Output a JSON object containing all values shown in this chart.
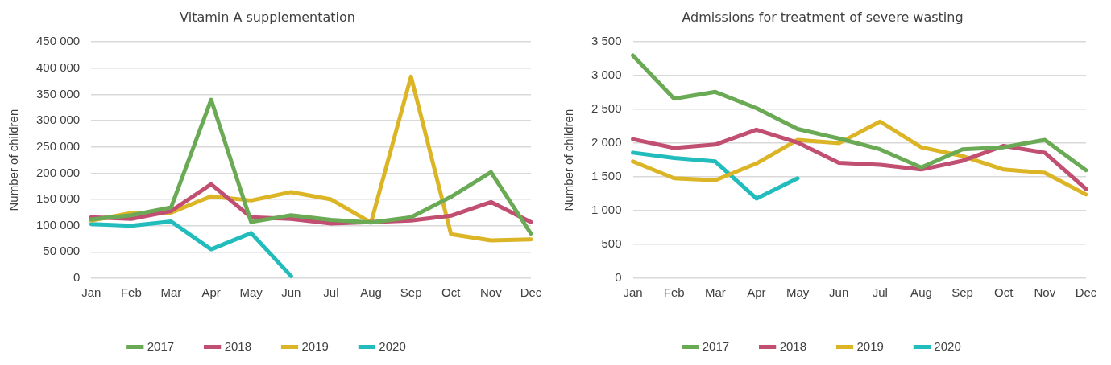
{
  "chart_data": [
    {
      "type": "line",
      "title": "Vitamin A supplementation",
      "ylabel": "Number of children",
      "categories": [
        "Jan",
        "Feb",
        "Mar",
        "Apr",
        "May",
        "Jun",
        "Jul",
        "Aug",
        "Sep",
        "Oct",
        "Nov",
        "Dec"
      ],
      "series": [
        {
          "name": "2017",
          "color": "#6aaa55",
          "values": [
            112000,
            120000,
            135000,
            340000,
            107000,
            120000,
            111000,
            106000,
            116000,
            155000,
            202000,
            85000
          ]
        },
        {
          "name": "2018",
          "color": "#c04f72",
          "values": [
            116000,
            113000,
            128000,
            179000,
            116000,
            113000,
            104000,
            107000,
            110000,
            119000,
            145000,
            107000
          ]
        },
        {
          "name": "2019",
          "color": "#dcb526",
          "values": [
            110000,
            124000,
            125000,
            156000,
            148000,
            164000,
            150000,
            106000,
            384000,
            84000,
            72000,
            74000
          ]
        },
        {
          "name": "2020",
          "color": "#22bcbc",
          "values": [
            103000,
            100000,
            108000,
            55000,
            86000,
            4000,
            null,
            null,
            null,
            null,
            null,
            null
          ]
        }
      ],
      "ylim": [
        0,
        450000
      ],
      "yticks": [
        {
          "value": 0,
          "label": "0"
        },
        {
          "value": 50000,
          "label": "50 000"
        },
        {
          "value": 100000,
          "label": "100 000"
        },
        {
          "value": 150000,
          "label": "150 000"
        },
        {
          "value": 200000,
          "label": "200 000"
        },
        {
          "value": 250000,
          "label": "250 000"
        },
        {
          "value": 300000,
          "label": "300 000"
        },
        {
          "value": 350000,
          "label": "350 000"
        },
        {
          "value": 400000,
          "label": "400 000"
        },
        {
          "value": 450000,
          "label": "450 000"
        }
      ],
      "grid": "y",
      "legend": "bottom",
      "marker": "none",
      "line_style": "solid"
    },
    {
      "type": "line",
      "title": "Admissions for treatment of severe wasting",
      "ylabel": "Number of children",
      "categories": [
        "Jan",
        "Feb",
        "Mar",
        "Apr",
        "May",
        "Jun",
        "Jul",
        "Aug",
        "Sep",
        "Oct",
        "Nov",
        "Dec"
      ],
      "series": [
        {
          "name": "2017",
          "color": "#6aaa55",
          "values": [
            3300,
            2660,
            2760,
            2520,
            2210,
            2070,
            1910,
            1640,
            1910,
            1940,
            2050,
            1600
          ]
        },
        {
          "name": "2018",
          "color": "#c04f72",
          "values": [
            2060,
            1930,
            1980,
            2200,
            2010,
            1710,
            1680,
            1610,
            1740,
            1960,
            1860,
            1320
          ]
        },
        {
          "name": "2019",
          "color": "#dcb526",
          "values": [
            1730,
            1480,
            1450,
            1700,
            2050,
            2000,
            2320,
            1940,
            1810,
            1610,
            1560,
            1240
          ]
        },
        {
          "name": "2020",
          "color": "#22bcbc",
          "values": [
            1860,
            1780,
            1730,
            1180,
            1480,
            null,
            null,
            null,
            null,
            null,
            null,
            null
          ]
        }
      ],
      "ylim": [
        0,
        3500
      ],
      "yticks": [
        {
          "value": 0,
          "label": "0"
        },
        500,
        {
          "value": 1000,
          "label": "1 000"
        },
        {
          "value": 1500,
          "label": "1 500"
        },
        {
          "value": 2000,
          "label": "2 000"
        },
        {
          "value": 2500,
          "label": "2 500"
        },
        {
          "value": 3000,
          "label": "3 000"
        },
        {
          "value": 3500,
          "label": "3 500"
        }
      ],
      "grid": "y",
      "legend": "bottom",
      "marker": "none",
      "line_style": "solid"
    }
  ]
}
